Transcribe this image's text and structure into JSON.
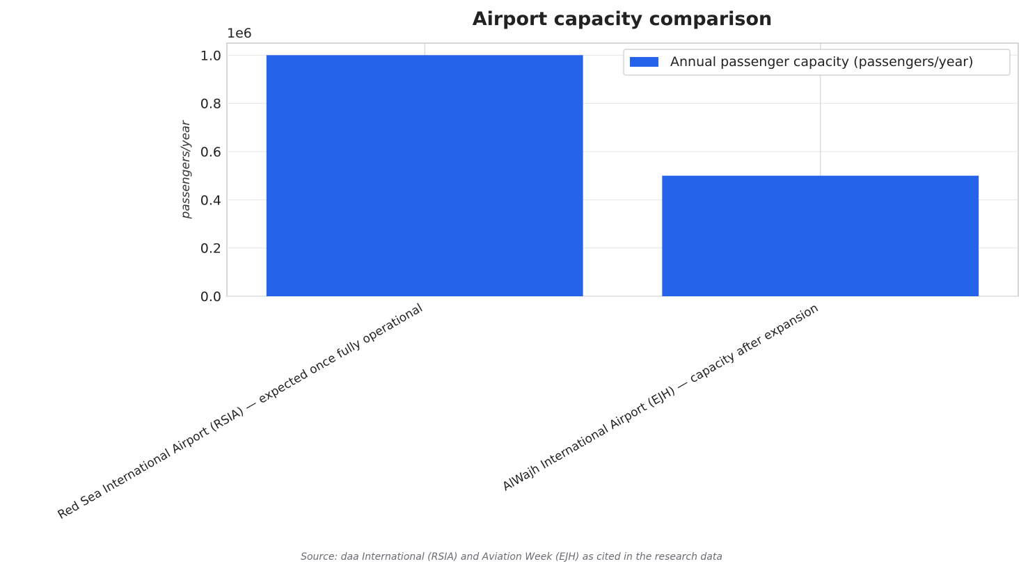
{
  "chart_data": {
    "type": "bar",
    "title": "Airport capacity comparison",
    "ylabel": "passengers/year",
    "xlabel": "",
    "offset_label": "1e6",
    "categories": [
      "Red Sea International Airport (RSIA) — expected once fully operational",
      "AlWajh International Airport (EJH) — capacity after expansion"
    ],
    "series": [
      {
        "name": "Annual passenger capacity (passengers/year)",
        "values": [
          1000000,
          500000
        ],
        "color": "#2563eb"
      }
    ],
    "ylim": [
      0,
      1050000
    ],
    "yticks": [
      0,
      200000,
      400000,
      600000,
      800000,
      1000000
    ],
    "ytick_labels": [
      "0.0",
      "0.2",
      "0.4",
      "0.6",
      "0.8",
      "1.0"
    ],
    "grid": true,
    "legend": "top-right",
    "source": "Source: daa International (RSIA) and Aviation Week (EJH) as cited in the research data"
  }
}
